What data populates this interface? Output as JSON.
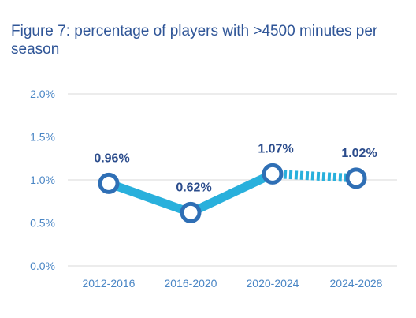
{
  "chart_data": {
    "type": "line",
    "title": "Figure 7: percentage of players with >4500 minutes per season",
    "categories": [
      "2012-2016",
      "2016-2020",
      "2020-2024",
      "2024-2028"
    ],
    "series": [
      {
        "values": [
          0.96,
          0.62,
          1.07,
          1.02
        ]
      }
    ],
    "data_labels": [
      "0.96%",
      "0.62%",
      "1.07%",
      "1.02%"
    ],
    "ylim": [
      0,
      2.0
    ],
    "yticks": [
      0,
      0.5,
      1.0,
      1.5,
      2.0
    ],
    "ytick_labels": [
      "0.0%",
      "0.5%",
      "1.0%",
      "1.5%",
      "2.0%"
    ],
    "dashed_from_index": 2,
    "grid": true,
    "xlabel": "",
    "ylabel": "",
    "colors": {
      "line": "#29b0dc",
      "marker_border": "#2f6fb5",
      "marker_fill": "#ffffff",
      "data_label": "#2b4c8c",
      "tick": "#4a86c5",
      "grid": "#d9d9d9",
      "title": "#2f5597"
    }
  }
}
